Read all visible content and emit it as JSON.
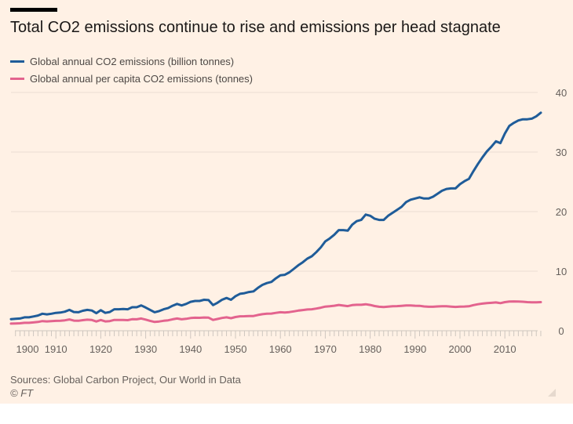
{
  "title": "Total CO2 emissions continue to rise and emissions per head stagnate",
  "source": "Sources: Global Carbon Project, Our World in Data",
  "copyright": "© FT",
  "chart_data": {
    "type": "line",
    "title": "Total CO2 emissions continue to rise and emissions per head stagnate",
    "xlabel": "",
    "ylabel": "",
    "xlim": [
      1900,
      2018
    ],
    "ylim": [
      0,
      40
    ],
    "grid": true,
    "legend": "top-left",
    "x_ticks": [
      1900,
      1910,
      1920,
      1930,
      1940,
      1950,
      1960,
      1970,
      1980,
      1990,
      2000,
      2010
    ],
    "y_ticks": [
      0,
      10,
      20,
      30,
      40
    ],
    "x_start": 1900,
    "series": [
      {
        "name": "Global annual CO2 emissions (billion tonnes)",
        "color": "#1F5C99",
        "values": [
          1.95,
          2.0,
          2.05,
          2.25,
          2.25,
          2.4,
          2.55,
          2.85,
          2.75,
          2.85,
          3.0,
          3.05,
          3.2,
          3.5,
          3.15,
          3.1,
          3.35,
          3.5,
          3.4,
          2.95,
          3.45,
          3.0,
          3.15,
          3.6,
          3.6,
          3.65,
          3.6,
          3.95,
          3.95,
          4.25,
          3.9,
          3.5,
          3.1,
          3.3,
          3.6,
          3.8,
          4.2,
          4.5,
          4.25,
          4.5,
          4.85,
          5.0,
          5.0,
          5.2,
          5.15,
          4.3,
          4.7,
          5.2,
          5.5,
          5.2,
          5.8,
          6.2,
          6.3,
          6.5,
          6.6,
          7.2,
          7.7,
          8.0,
          8.2,
          8.8,
          9.3,
          9.4,
          9.8,
          10.4,
          11.0,
          11.5,
          12.1,
          12.5,
          13.2,
          14.0,
          15.0,
          15.5,
          16.1,
          16.9,
          16.9,
          16.8,
          17.8,
          18.4,
          18.6,
          19.5,
          19.3,
          18.8,
          18.6,
          18.6,
          19.3,
          19.8,
          20.3,
          20.8,
          21.6,
          22.0,
          22.2,
          22.4,
          22.2,
          22.2,
          22.5,
          23.0,
          23.5,
          23.8,
          23.9,
          23.9,
          24.6,
          25.1,
          25.5,
          26.8,
          28.0,
          29.1,
          30.1,
          30.9,
          31.8,
          31.5,
          33.1,
          34.4,
          34.9,
          35.3,
          35.5,
          35.5,
          35.6,
          36.0,
          36.6
        ]
      },
      {
        "name": "Global annual per capita CO2 emissions (tonnes)",
        "color": "#E3638E",
        "values": [
          1.2,
          1.22,
          1.25,
          1.33,
          1.33,
          1.4,
          1.47,
          1.62,
          1.56,
          1.6,
          1.66,
          1.68,
          1.75,
          1.9,
          1.7,
          1.67,
          1.78,
          1.85,
          1.8,
          1.55,
          1.8,
          1.56,
          1.62,
          1.82,
          1.82,
          1.82,
          1.78,
          1.93,
          1.92,
          2.05,
          1.87,
          1.66,
          1.47,
          1.55,
          1.67,
          1.75,
          1.92,
          2.05,
          1.92,
          2.0,
          2.13,
          2.18,
          2.17,
          2.23,
          2.2,
          1.82,
          1.98,
          2.15,
          2.25,
          2.1,
          2.3,
          2.42,
          2.43,
          2.47,
          2.48,
          2.65,
          2.78,
          2.85,
          2.88,
          3.0,
          3.1,
          3.07,
          3.13,
          3.25,
          3.38,
          3.47,
          3.57,
          3.6,
          3.73,
          3.87,
          4.05,
          4.1,
          4.2,
          4.33,
          4.23,
          4.13,
          4.3,
          4.35,
          4.35,
          4.45,
          4.33,
          4.15,
          4.03,
          3.98,
          4.05,
          4.1,
          4.13,
          4.18,
          4.25,
          4.25,
          4.2,
          4.18,
          4.08,
          4.03,
          4.03,
          4.08,
          4.1,
          4.1,
          4.05,
          4.0,
          4.05,
          4.07,
          4.1,
          4.3,
          4.45,
          4.55,
          4.63,
          4.68,
          4.75,
          4.63,
          4.8,
          4.9,
          4.92,
          4.9,
          4.87,
          4.8,
          4.78,
          4.78,
          4.8
        ]
      }
    ]
  }
}
